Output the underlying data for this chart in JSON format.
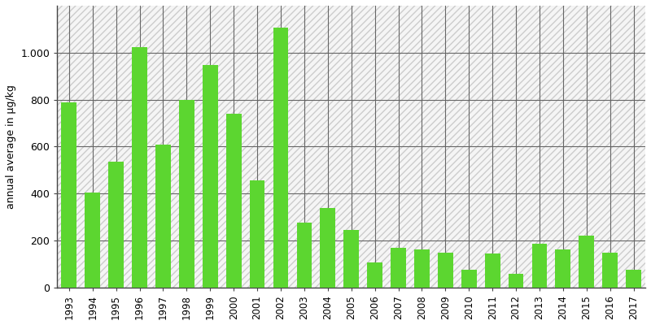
{
  "years": [
    1993,
    1994,
    1995,
    1996,
    1997,
    1998,
    1999,
    2000,
    2001,
    2002,
    2003,
    2004,
    2005,
    2006,
    2007,
    2008,
    2009,
    2010,
    2011,
    2012,
    2013,
    2014,
    2015,
    2016,
    2017
  ],
  "values": [
    790,
    405,
    535,
    1025,
    608,
    800,
    948,
    740,
    455,
    1105,
    278,
    338,
    247,
    108,
    170,
    163,
    148,
    75,
    145,
    60,
    188,
    162,
    222,
    148,
    75
  ],
  "bar_color": "#5cd630",
  "ylabel": "annual average in µg/kg",
  "ylim": [
    0,
    1200
  ],
  "yticks": [
    0,
    200,
    400,
    600,
    800,
    1000
  ],
  "ytick_labels": [
    "0",
    "200",
    "400",
    "600",
    "800",
    "1.000"
  ],
  "background_color": "#ffffff",
  "grid_color": "#666666",
  "hatch_pattern": "////",
  "hatch_color": "#cccccc",
  "hatch_bg_color": "#f0f0f0"
}
